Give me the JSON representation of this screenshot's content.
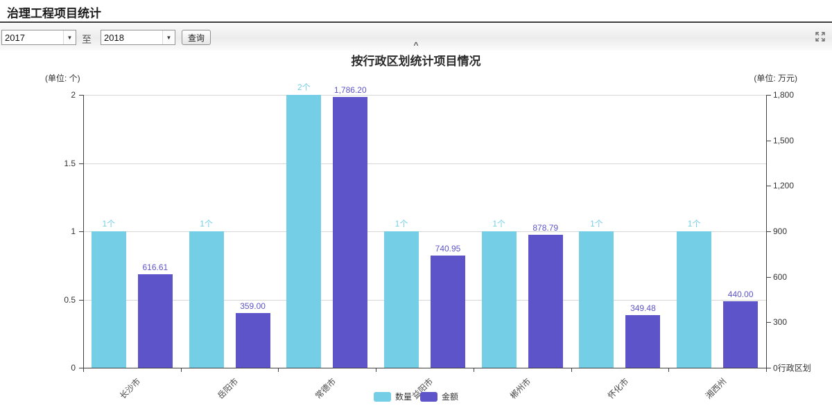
{
  "page": {
    "title": "治理工程项目统计"
  },
  "toolbar": {
    "year_from": "2017",
    "to_label": "至",
    "year_to": "2018",
    "query_button": "查询",
    "collapse_icon": "^",
    "fullscreen_icon": "expand-arrows"
  },
  "chart_data": {
    "type": "bar",
    "title": "按行政区划统计项目情况",
    "categories": [
      "长沙市",
      "岳阳市",
      "常德市",
      "益阳市",
      "郴州市",
      "怀化市",
      "湘西州"
    ],
    "series": [
      {
        "name": "数量",
        "axis": "left",
        "color": "#74CFE6",
        "values": [
          1,
          1,
          2,
          1,
          1,
          1,
          1
        ],
        "labels": [
          "1个",
          "1个",
          "2个",
          "1个",
          "1个",
          "1个",
          "1个"
        ]
      },
      {
        "name": "金额",
        "axis": "right",
        "color": "#5C54C8",
        "values": [
          616.61,
          359.0,
          1786.2,
          740.95,
          878.79,
          349.48,
          440.0
        ],
        "labels": [
          "616.61",
          "359.00",
          "1,786.20",
          "740.95",
          "878.79",
          "349.48",
          "440.00"
        ]
      }
    ],
    "left_axis": {
      "unit_label": "(单位: 个)",
      "min": 0,
      "max": 2,
      "ticks": [
        "2",
        "1.5",
        "1",
        "0.5",
        "0"
      ]
    },
    "right_axis": {
      "unit_label": "(单位: 万元)",
      "min": 0,
      "max": 1800,
      "ticks": [
        "1,800",
        "1,500",
        "1,200",
        "900",
        "600",
        "300",
        "0"
      ],
      "axis_name": "行政区划"
    },
    "legend": {
      "items": [
        "数量",
        "金额"
      ],
      "position": "bottom"
    },
    "grid": true
  }
}
